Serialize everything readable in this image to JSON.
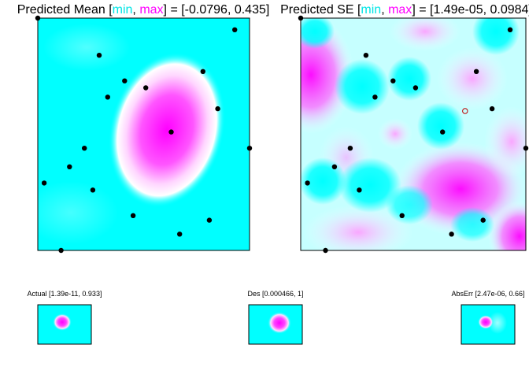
{
  "chart_data": [
    {
      "type": "heatmap",
      "title_parts": [
        "Predicted Mean [",
        "min",
        ", ",
        "max",
        "] = [-0.0796, 0.435]"
      ],
      "colors": {
        "low": "#00ffff",
        "mid": "#ffffff",
        "high": "#ff00ff"
      },
      "points": [
        [
          0.0,
          1.0
        ],
        [
          0.93,
          0.95
        ],
        [
          0.29,
          0.84
        ],
        [
          0.78,
          0.77
        ],
        [
          0.41,
          0.73
        ],
        [
          0.51,
          0.7
        ],
        [
          0.33,
          0.66
        ],
        [
          0.85,
          0.61
        ],
        [
          0.63,
          0.51
        ],
        [
          1.0,
          0.44
        ],
        [
          0.22,
          0.44
        ],
        [
          0.15,
          0.36
        ],
        [
          0.03,
          0.29
        ],
        [
          0.26,
          0.26
        ],
        [
          0.45,
          0.15
        ],
        [
          0.81,
          0.13
        ],
        [
          0.67,
          0.07
        ],
        [
          0.11,
          0.0
        ]
      ],
      "open_points": []
    },
    {
      "type": "heatmap",
      "title_parts": [
        "Predicted SE [",
        "min",
        ", ",
        "max",
        "] = [1.49e-05, 0.0984]"
      ],
      "colors": {
        "low": "#00ffff",
        "mid": "#ffffff",
        "high": "#ff00ff"
      },
      "points": [
        [
          0.0,
          1.0
        ],
        [
          0.93,
          0.95
        ],
        [
          0.29,
          0.84
        ],
        [
          0.78,
          0.77
        ],
        [
          0.41,
          0.73
        ],
        [
          0.51,
          0.7
        ],
        [
          0.33,
          0.66
        ],
        [
          0.85,
          0.61
        ],
        [
          0.63,
          0.51
        ],
        [
          1.0,
          0.44
        ],
        [
          0.22,
          0.44
        ],
        [
          0.15,
          0.36
        ],
        [
          0.03,
          0.29
        ],
        [
          0.26,
          0.26
        ],
        [
          0.45,
          0.15
        ],
        [
          0.81,
          0.13
        ],
        [
          0.67,
          0.07
        ],
        [
          0.11,
          0.0
        ]
      ],
      "open_points": [
        [
          0.73,
          0.6
        ]
      ]
    },
    {
      "type": "heatmap",
      "title": "Actual [1.39e-11, 0.933]"
    },
    {
      "type": "heatmap",
      "title": "Des [0.000466, 1]"
    },
    {
      "type": "heatmap",
      "title": "AbsErr [2.47e-06, 0.66]"
    }
  ]
}
